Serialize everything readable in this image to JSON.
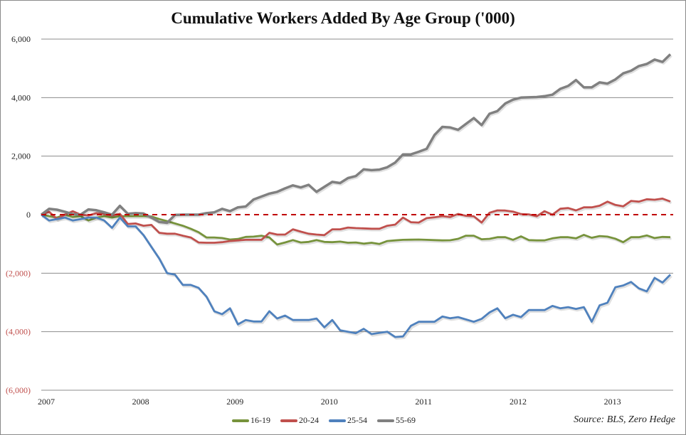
{
  "chart_data": {
    "type": "line",
    "title": "Cumulative Workers Added By Age Group ('000)",
    "xlabel": "",
    "ylabel": "",
    "ylim": [
      -6000,
      6000
    ],
    "yticks": [
      6000,
      4000,
      2000,
      0,
      -2000,
      -4000,
      -6000
    ],
    "ytick_labels": [
      "6,000",
      "4,000",
      "2,000",
      "0",
      "(2,000)",
      "(4,000)",
      "(6,000)"
    ],
    "xtick_labels": [
      "2007",
      "2008",
      "2009",
      "2010",
      "2011",
      "2012",
      "2013"
    ],
    "grid": true,
    "zero_line": "red dashed",
    "legend_position": "bottom",
    "source": "Source: BLS, Zero Hedge",
    "negative_label_color": "#c0504d",
    "x": [
      "2007-01",
      "2007-02",
      "2007-03",
      "2007-04",
      "2007-05",
      "2007-06",
      "2007-07",
      "2007-08",
      "2007-09",
      "2007-10",
      "2007-11",
      "2007-12",
      "2008-01",
      "2008-02",
      "2008-03",
      "2008-04",
      "2008-05",
      "2008-06",
      "2008-07",
      "2008-08",
      "2008-09",
      "2008-10",
      "2008-11",
      "2008-12",
      "2009-01",
      "2009-02",
      "2009-03",
      "2009-04",
      "2009-05",
      "2009-06",
      "2009-07",
      "2009-08",
      "2009-09",
      "2009-10",
      "2009-11",
      "2009-12",
      "2010-01",
      "2010-02",
      "2010-03",
      "2010-04",
      "2010-05",
      "2010-06",
      "2010-07",
      "2010-08",
      "2010-09",
      "2010-10",
      "2010-11",
      "2010-12",
      "2011-01",
      "2011-02",
      "2011-03",
      "2011-04",
      "2011-05",
      "2011-06",
      "2011-07",
      "2011-08",
      "2011-09",
      "2011-10",
      "2011-11",
      "2011-12",
      "2012-01",
      "2012-02",
      "2012-03",
      "2012-04",
      "2012-05",
      "2012-06",
      "2012-07",
      "2012-08",
      "2012-09",
      "2012-10",
      "2012-11",
      "2012-12",
      "2013-01",
      "2013-02",
      "2013-03",
      "2013-04",
      "2013-05",
      "2013-06",
      "2013-07",
      "2013-08",
      "2013-09"
    ],
    "series": [
      {
        "name": "16-19",
        "color": "#77933c",
        "values": [
          0,
          -50,
          -100,
          0,
          -80,
          -50,
          -200,
          -100,
          -50,
          -100,
          -50,
          -50,
          -50,
          -50,
          -60,
          -150,
          -220,
          -300,
          -380,
          -480,
          -600,
          -780,
          -780,
          -800,
          -850,
          -830,
          -760,
          -750,
          -720,
          -780,
          -1020,
          -950,
          -870,
          -950,
          -930,
          -870,
          -930,
          -940,
          -920,
          -960,
          -950,
          -990,
          -960,
          -1000,
          -900,
          -880,
          -860,
          -855,
          -850,
          -860,
          -870,
          -880,
          -875,
          -825,
          -720,
          -720,
          -840,
          -825,
          -770,
          -770,
          -860,
          -740,
          -870,
          -880,
          -880,
          -810,
          -770,
          -770,
          -810,
          -690,
          -790,
          -730,
          -750,
          -820,
          -940,
          -770,
          -770,
          -710,
          -800,
          -760,
          -770
        ]
      },
      {
        "name": "20-24",
        "color": "#c0504d",
        "values": [
          0,
          100,
          -150,
          0,
          120,
          0,
          -30,
          50,
          20,
          -30,
          30,
          -320,
          -300,
          -380,
          -350,
          -620,
          -650,
          -650,
          -720,
          -780,
          -950,
          -960,
          -960,
          -940,
          -900,
          -880,
          -860,
          -860,
          -860,
          -620,
          -680,
          -680,
          -500,
          -580,
          -650,
          -680,
          -700,
          -500,
          -500,
          -440,
          -460,
          -470,
          -480,
          -480,
          -380,
          -340,
          -100,
          -257,
          -270,
          -120,
          -90,
          -50,
          -80,
          24,
          -40,
          -57,
          -270,
          65,
          146,
          140,
          105,
          20,
          10,
          -57,
          120,
          0,
          202,
          226,
          146,
          250,
          250,
          307,
          445,
          332,
          283,
          469,
          445,
          526,
          510,
          550,
          450
        ]
      },
      {
        "name": "25-54",
        "color": "#4f81bd",
        "values": [
          0,
          -200,
          -150,
          -100,
          -200,
          -150,
          -100,
          -100,
          -200,
          -450,
          -100,
          -400,
          -400,
          -700,
          -1100,
          -1500,
          -2000,
          -2050,
          -2400,
          -2400,
          -2500,
          -2800,
          -3300,
          -3400,
          -3200,
          -3750,
          -3600,
          -3650,
          -3650,
          -3300,
          -3550,
          -3450,
          -3600,
          -3600,
          -3600,
          -3550,
          -3850,
          -3600,
          -3950,
          -4000,
          -4050,
          -3900,
          -4080,
          -4040,
          -4000,
          -4180,
          -4160,
          -3800,
          -3660,
          -3660,
          -3660,
          -3480,
          -3540,
          -3500,
          -3580,
          -3660,
          -3560,
          -3340,
          -3200,
          -3540,
          -3420,
          -3500,
          -3260,
          -3260,
          -3260,
          -3120,
          -3200,
          -3160,
          -3220,
          -3160,
          -3660,
          -3100,
          -3010,
          -2480,
          -2420,
          -2300,
          -2520,
          -2620,
          -2160,
          -2320,
          -2050
        ]
      },
      {
        "name": "55-69",
        "color": "#808080",
        "values": [
          0,
          200,
          170,
          100,
          20,
          0,
          180,
          150,
          80,
          0,
          300,
          30,
          50,
          40,
          -100,
          -250,
          -280,
          -10,
          0,
          0,
          0,
          50,
          80,
          200,
          120,
          250,
          280,
          520,
          620,
          720,
          780,
          900,
          1000,
          930,
          1020,
          780,
          950,
          1120,
          1080,
          1250,
          1320,
          1550,
          1520,
          1540,
          1620,
          1780,
          2060,
          2060,
          2150,
          2250,
          2720,
          3000,
          2980,
          2900,
          3100,
          3300,
          3060,
          3450,
          3540,
          3800,
          3930,
          4000,
          4010,
          4020,
          4050,
          4100,
          4300,
          4400,
          4600,
          4350,
          4350,
          4520,
          4480,
          4620,
          4830,
          4920,
          5080,
          5150,
          5300,
          5220,
          5480
        ]
      }
    ]
  }
}
